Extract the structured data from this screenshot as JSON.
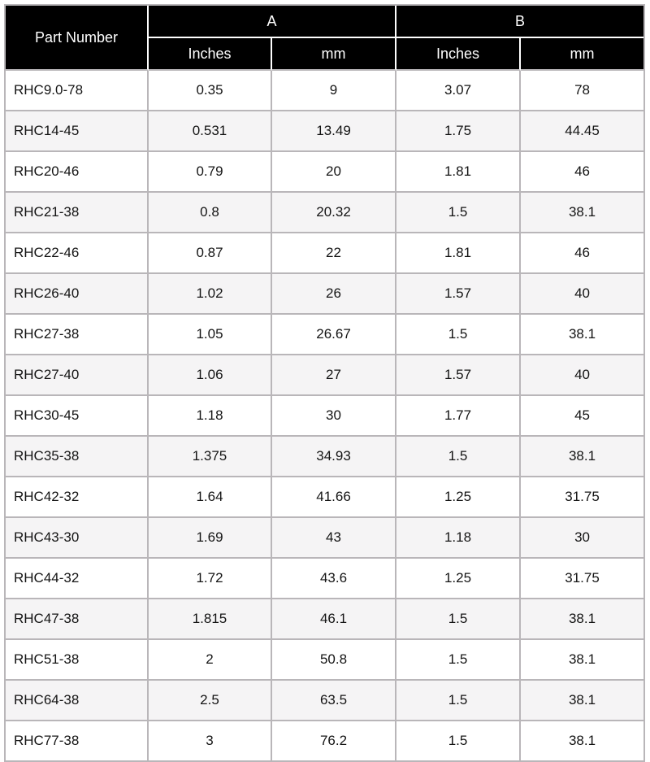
{
  "table": {
    "header": {
      "part_number_label": "Part Number",
      "group_a_label": "A",
      "group_b_label": "B",
      "inches_label": "Inches",
      "mm_label": "mm"
    },
    "rows": [
      {
        "part_number": "RHC9.0-78",
        "a_inches": "0.35",
        "a_mm": "9",
        "b_inches": "3.07",
        "b_mm": "78"
      },
      {
        "part_number": "RHC14-45",
        "a_inches": "0.531",
        "a_mm": "13.49",
        "b_inches": "1.75",
        "b_mm": "44.45"
      },
      {
        "part_number": "RHC20-46",
        "a_inches": "0.79",
        "a_mm": "20",
        "b_inches": "1.81",
        "b_mm": "46"
      },
      {
        "part_number": "RHC21-38",
        "a_inches": "0.8",
        "a_mm": "20.32",
        "b_inches": "1.5",
        "b_mm": "38.1"
      },
      {
        "part_number": "RHC22-46",
        "a_inches": "0.87",
        "a_mm": "22",
        "b_inches": "1.81",
        "b_mm": "46"
      },
      {
        "part_number": "RHC26-40",
        "a_inches": "1.02",
        "a_mm": "26",
        "b_inches": "1.57",
        "b_mm": "40"
      },
      {
        "part_number": "RHC27-38",
        "a_inches": "1.05",
        "a_mm": "26.67",
        "b_inches": "1.5",
        "b_mm": "38.1"
      },
      {
        "part_number": "RHC27-40",
        "a_inches": "1.06",
        "a_mm": "27",
        "b_inches": "1.57",
        "b_mm": "40"
      },
      {
        "part_number": "RHC30-45",
        "a_inches": "1.18",
        "a_mm": "30",
        "b_inches": "1.77",
        "b_mm": "45"
      },
      {
        "part_number": "RHC35-38",
        "a_inches": "1.375",
        "a_mm": "34.93",
        "b_inches": "1.5",
        "b_mm": "38.1"
      },
      {
        "part_number": "RHC42-32",
        "a_inches": "1.64",
        "a_mm": "41.66",
        "b_inches": "1.25",
        "b_mm": "31.75"
      },
      {
        "part_number": "RHC43-30",
        "a_inches": "1.69",
        "a_mm": "43",
        "b_inches": "1.18",
        "b_mm": "30"
      },
      {
        "part_number": "RHC44-32",
        "a_inches": "1.72",
        "a_mm": "43.6",
        "b_inches": "1.25",
        "b_mm": "31.75"
      },
      {
        "part_number": "RHC47-38",
        "a_inches": "1.815",
        "a_mm": "46.1",
        "b_inches": "1.5",
        "b_mm": "38.1"
      },
      {
        "part_number": "RHC51-38",
        "a_inches": "2",
        "a_mm": "50.8",
        "b_inches": "1.5",
        "b_mm": "38.1"
      },
      {
        "part_number": "RHC64-38",
        "a_inches": "2.5",
        "a_mm": "63.5",
        "b_inches": "1.5",
        "b_mm": "38.1"
      },
      {
        "part_number": "RHC77-38",
        "a_inches": "3",
        "a_mm": "76.2",
        "b_inches": "1.5",
        "b_mm": "38.1"
      }
    ]
  },
  "colors": {
    "header_bg": "#000000",
    "header_text": "#ffffff",
    "row_alt_bg": "#f5f4f5",
    "border": "#b9b6b9",
    "header_divider": "#ffffff",
    "body_text": "#141414"
  }
}
